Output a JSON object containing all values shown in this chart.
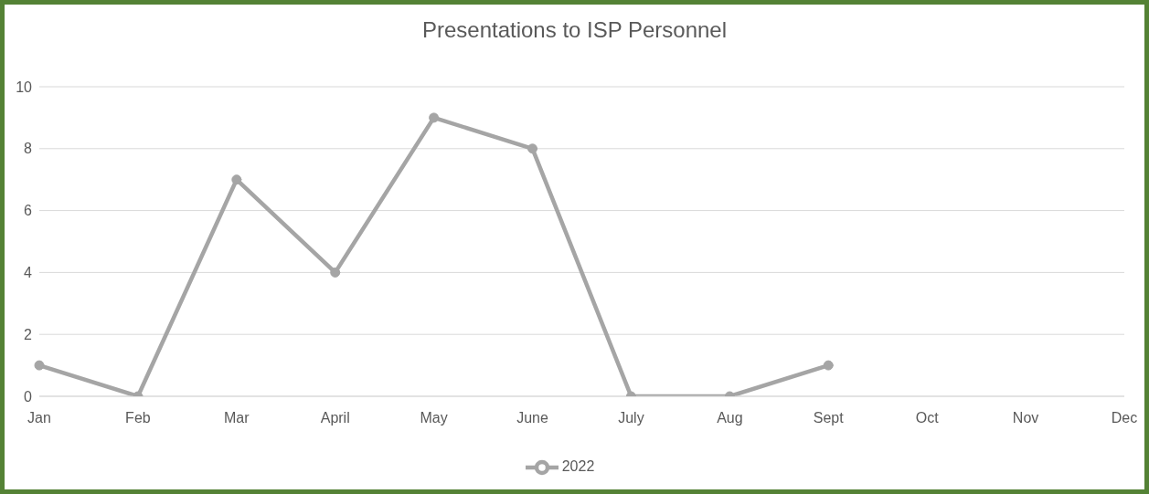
{
  "chart_data": {
    "type": "line",
    "title": "Presentations to ISP Personnel",
    "categories": [
      "Jan",
      "Feb",
      "Mar",
      "April",
      "May",
      "June",
      "July",
      "Aug",
      "Sept",
      "Oct",
      "Nov",
      "Dec"
    ],
    "series": [
      {
        "name": "2022",
        "color": "#a5a5a5",
        "values": [
          1,
          0,
          7,
          4,
          9,
          8,
          0,
          0,
          1,
          null,
          null,
          null
        ]
      }
    ],
    "ylim": [
      0,
      10
    ],
    "yticks": [
      0,
      2,
      4,
      6,
      8,
      10
    ],
    "grid": "y",
    "legend": "bottom",
    "marker": "circle",
    "line_style": "solid"
  }
}
